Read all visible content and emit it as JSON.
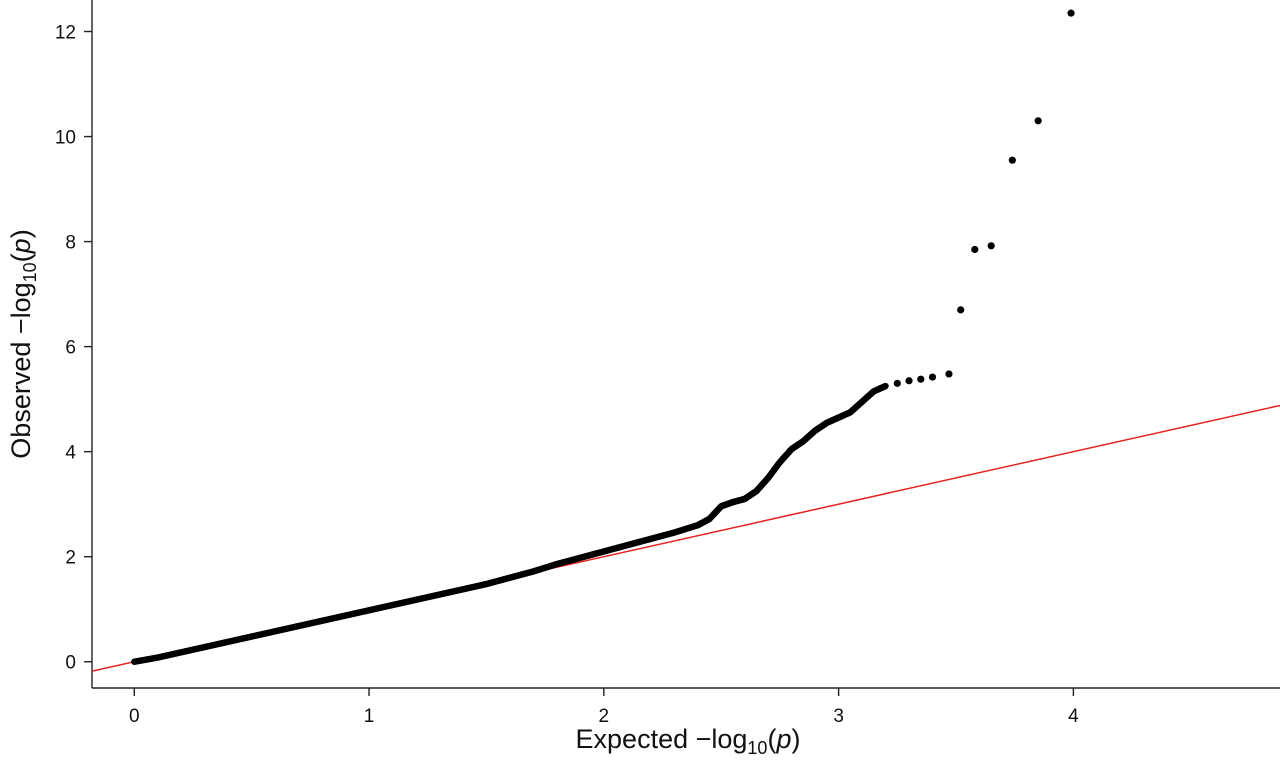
{
  "chart_data": {
    "type": "scatter",
    "title": "",
    "xlabel": {
      "prefix": "Expected  −log",
      "sub": "10",
      "open": "(",
      "var": "p",
      "close": ")"
    },
    "ylabel": {
      "prefix": "Observed  −log",
      "sub": "10",
      "open": "(",
      "var": "p",
      "close": ")"
    },
    "xlim": [
      -0.18,
      4.88
    ],
    "ylim": [
      -0.5,
      12.6
    ],
    "xticks": [
      0,
      1,
      2,
      3,
      4
    ],
    "xtick_labels": [
      "0",
      "1",
      "2",
      "3",
      "4"
    ],
    "yticks": [
      0,
      2,
      4,
      6,
      8,
      10,
      12
    ],
    "ytick_labels": [
      "0",
      "2",
      "4",
      "6",
      "8",
      "10",
      "12"
    ],
    "grid": false,
    "reference_line": {
      "slope": 1,
      "intercept": 0,
      "color": "#e8221f"
    },
    "point_color": "#000000",
    "series": [
      {
        "bulk_curve": [
          [
            0.0,
            0.0
          ],
          [
            0.1,
            0.08
          ],
          [
            0.2,
            0.18
          ],
          [
            0.3,
            0.28
          ],
          [
            0.4,
            0.38
          ],
          [
            0.5,
            0.48
          ],
          [
            0.6,
            0.58
          ],
          [
            0.7,
            0.68
          ],
          [
            0.8,
            0.78
          ],
          [
            0.9,
            0.88
          ],
          [
            1.0,
            0.98
          ],
          [
            1.1,
            1.08
          ],
          [
            1.2,
            1.18
          ],
          [
            1.3,
            1.28
          ],
          [
            1.4,
            1.38
          ],
          [
            1.5,
            1.48
          ],
          [
            1.6,
            1.6
          ],
          [
            1.7,
            1.72
          ],
          [
            1.8,
            1.86
          ],
          [
            1.9,
            1.98
          ],
          [
            2.0,
            2.1
          ],
          [
            2.1,
            2.22
          ],
          [
            2.2,
            2.34
          ],
          [
            2.3,
            2.46
          ],
          [
            2.4,
            2.6
          ],
          [
            2.45,
            2.72
          ],
          [
            2.5,
            2.96
          ],
          [
            2.55,
            3.04
          ],
          [
            2.6,
            3.1
          ],
          [
            2.65,
            3.25
          ],
          [
            2.7,
            3.5
          ],
          [
            2.75,
            3.8
          ],
          [
            2.8,
            4.05
          ],
          [
            2.85,
            4.2
          ],
          [
            2.9,
            4.4
          ],
          [
            2.95,
            4.55
          ],
          [
            3.0,
            4.65
          ],
          [
            3.05,
            4.75
          ],
          [
            3.1,
            4.95
          ],
          [
            3.15,
            5.15
          ],
          [
            3.2,
            5.25
          ]
        ],
        "extra_points": [
          [
            3.25,
            5.3
          ],
          [
            3.3,
            5.35
          ],
          [
            3.35,
            5.38
          ],
          [
            3.4,
            5.42
          ],
          [
            3.47,
            5.48
          ],
          [
            3.52,
            6.7
          ],
          [
            3.58,
            7.85
          ],
          [
            3.65,
            7.92
          ],
          [
            3.74,
            9.55
          ],
          [
            3.85,
            10.3
          ],
          [
            3.99,
            12.35
          ]
        ]
      }
    ]
  }
}
